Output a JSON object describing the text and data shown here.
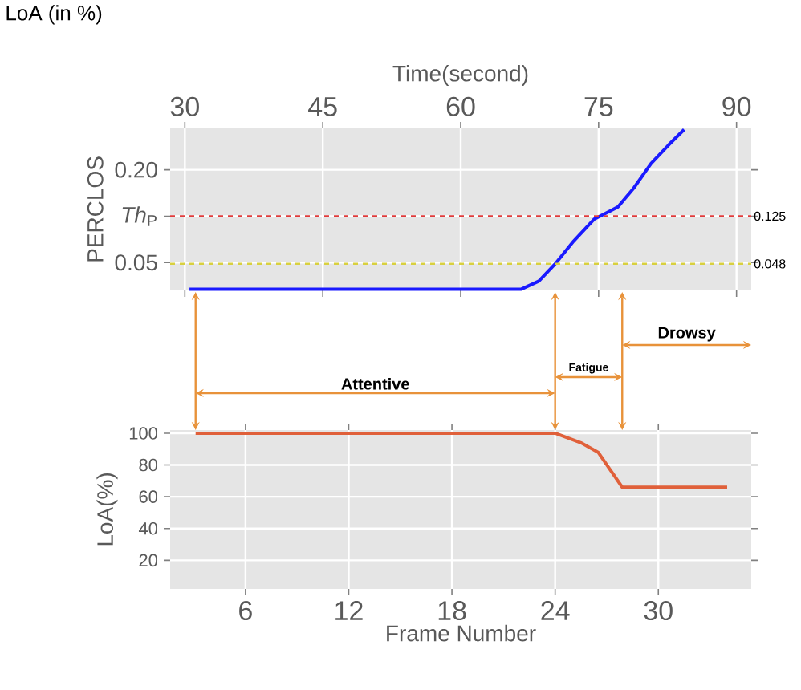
{
  "chart_data": [
    {
      "type": "line",
      "xlabel": "Time(second)",
      "ylabel": "PERCLOS",
      "xlim": [
        28.4,
        91.6
      ],
      "xticks": [
        30,
        45,
        60,
        75,
        90
      ],
      "ylim": [
        0.005,
        0.267
      ],
      "yticks": [
        0.05,
        {
          "value": 0.125,
          "label": "*Th*$_{P}$"
        },
        {
          "value": 0.2,
          "label": "0.20"
        }
      ],
      "x": [
        30.5,
        66.6,
        68.5,
        70.4,
        72.3,
        74.5,
        77.1,
        78.8,
        80.7,
        82.6,
        84.3
      ],
      "values": [
        0.007,
        0.007,
        0.02,
        0.05,
        0.085,
        0.12,
        0.14,
        0.17,
        0.21,
        0.24,
        0.265
      ],
      "color": "#1a1aff",
      "grid": true,
      "ref_lines": [
        {
          "axis": "y",
          "value": 0.125,
          "label": "0.125",
          "color": "#e03a3a",
          "line_style": "dashed"
        },
        {
          "axis": "y",
          "value": 0.048,
          "label": "0.048",
          "color": "#d8d040",
          "line_style": "dashed"
        }
      ],
      "annotations": [
        "LoA (in %)"
      ]
    },
    {
      "type": "line",
      "xlabel": "Frame Number",
      "ylabel": "LoA(%)",
      "xlim": [
        1.62,
        35.4
      ],
      "xticks": [
        6,
        12,
        18,
        24,
        30
      ],
      "ylim": [
        2,
        102
      ],
      "yticks": [
        20,
        40,
        60,
        80,
        100
      ],
      "x": [
        3.1,
        24,
        25.5,
        26.5,
        27.9,
        34
      ],
      "values": [
        100,
        100,
        94,
        88,
        66,
        66
      ],
      "color": "#e0603a",
      "grid": true,
      "annotations": [
        "Attentive",
        "Fatigue",
        "Drowsy"
      ]
    }
  ]
}
